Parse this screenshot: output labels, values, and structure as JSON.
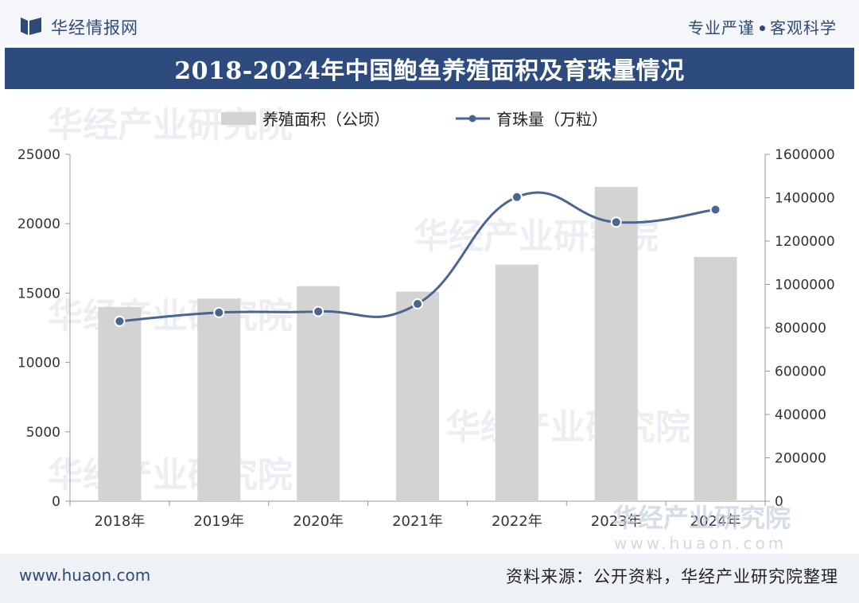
{
  "header": {
    "brand": "华经情报网",
    "slogan_left": "专业严谨",
    "slogan_right": "客观科学"
  },
  "colors": {
    "header_band": "#2e4b7f",
    "bar": "#d3d3d3",
    "line": "#4a6690",
    "axis_text": "#333333"
  },
  "chart_data": {
    "type": "bar+line",
    "title": "2018-2024年中国鲍鱼养殖面积及育珠量情况",
    "categories": [
      "2018年",
      "2019年",
      "2020年",
      "2021年",
      "2022年",
      "2023年",
      "2024年"
    ],
    "series": [
      {
        "name": "养殖面积（公顷）",
        "type": "bar",
        "axis": "left",
        "values": [
          14000,
          14600,
          15500,
          15100,
          17050,
          22650,
          17600
        ]
      },
      {
        "name": "育珠量（万粒）",
        "type": "line",
        "axis": "right",
        "values": [
          830000,
          870000,
          875000,
          910000,
          1403000,
          1287000,
          1345000
        ]
      }
    ],
    "y_left": {
      "min": 0,
      "max": 25000,
      "ticks": [
        "0",
        "5000",
        "10000",
        "15000",
        "20000",
        "25000"
      ]
    },
    "y_right": {
      "min": 0,
      "max": 1600000,
      "ticks": [
        "0",
        "200000",
        "400000",
        "600000",
        "800000",
        "1000000",
        "1200000",
        "1400000",
        "1600000"
      ]
    },
    "legend_position": "top-center",
    "grid": false
  },
  "watermark": {
    "text": "华经产业研究院",
    "url": "www.huaon.com"
  },
  "footer": {
    "site": "www.huaon.com",
    "source": "资料来源：公开资料，华经产业研究院整理"
  }
}
